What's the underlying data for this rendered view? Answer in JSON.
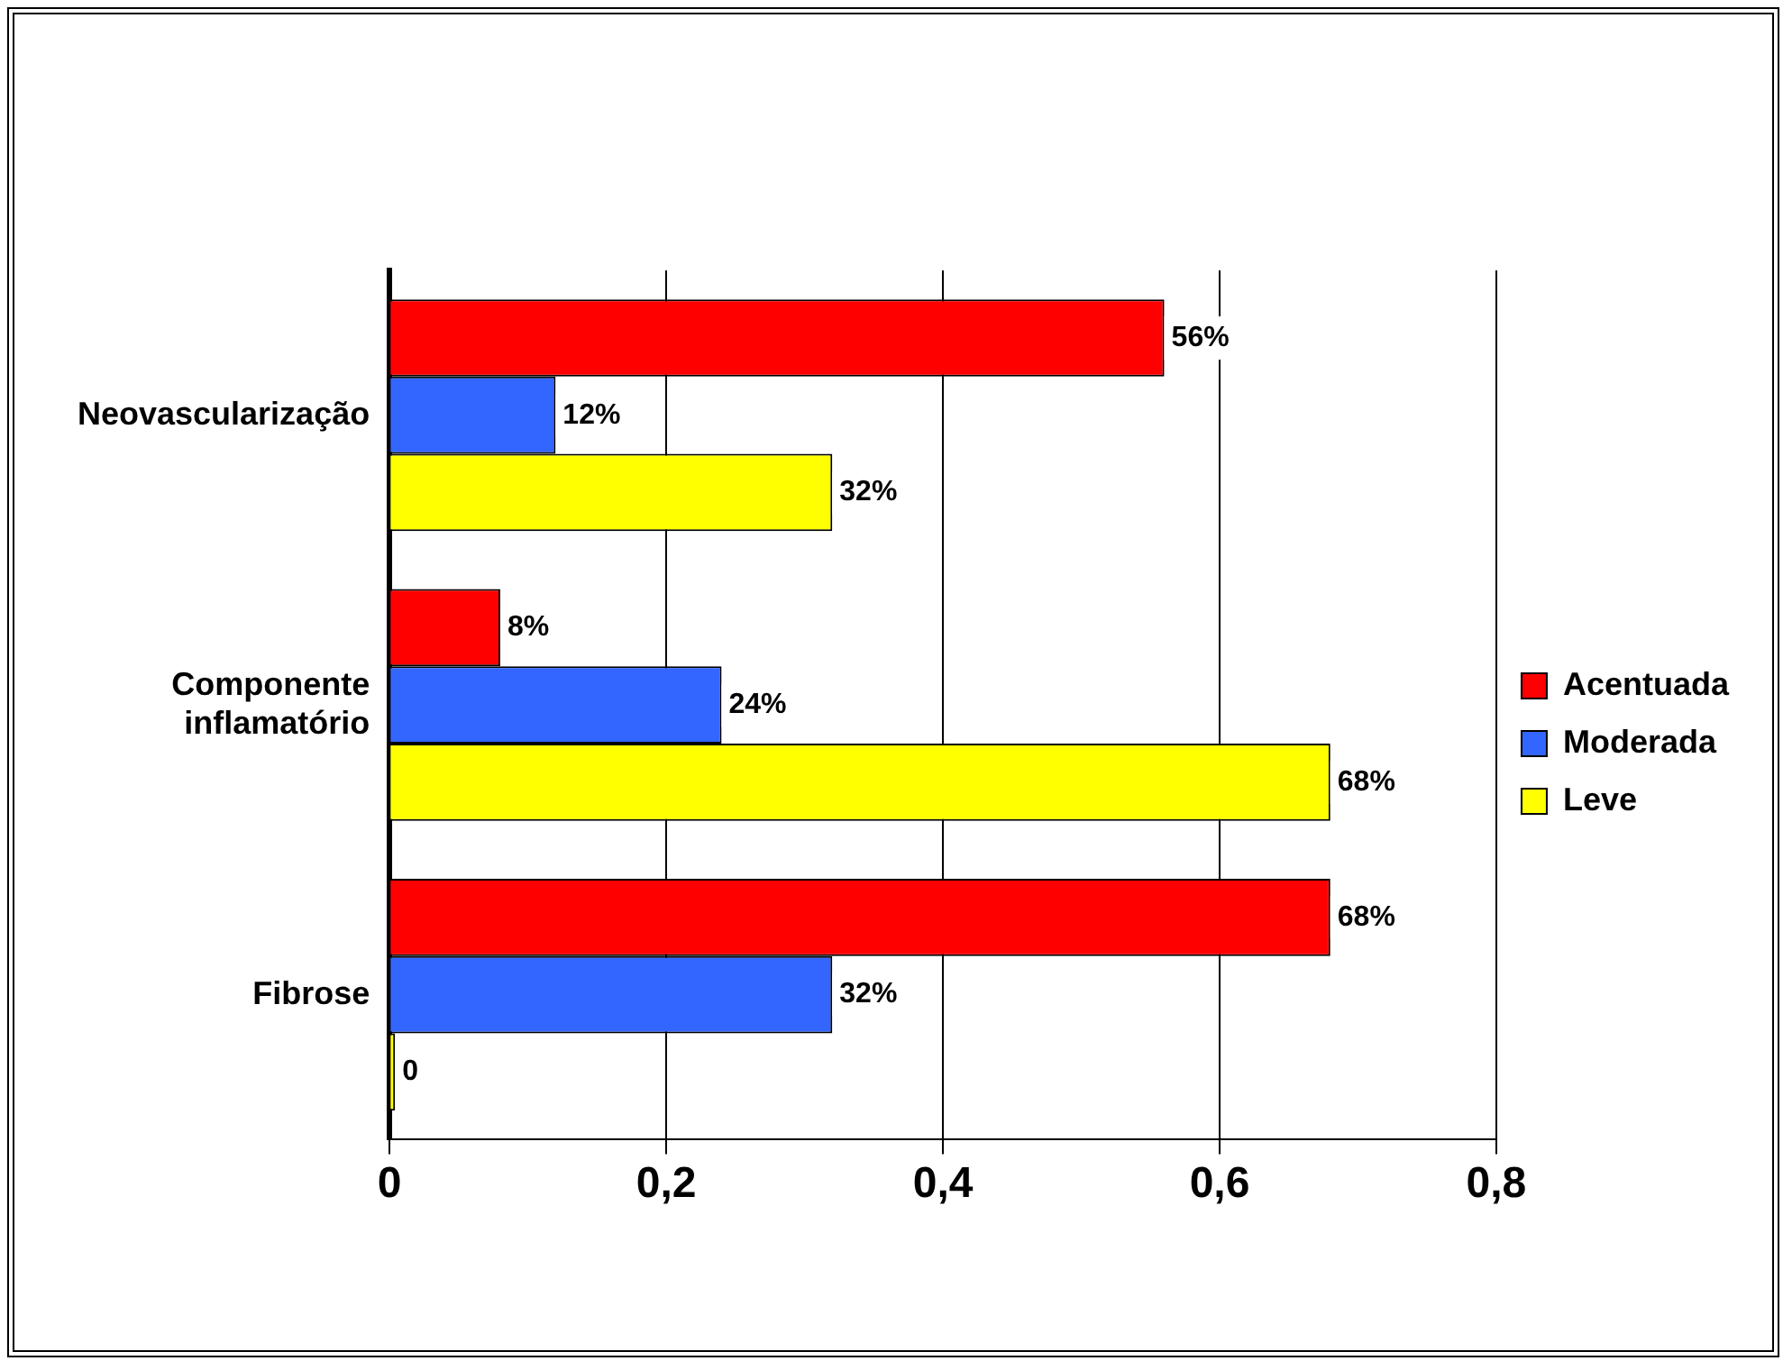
{
  "chart_data": {
    "type": "bar",
    "orientation": "horizontal",
    "categories": [
      "Neovascularização",
      "Componente inflamatório",
      "Fibrose"
    ],
    "series": [
      {
        "name": "Acentuada",
        "color": "#ff0000",
        "values": [
          0.56,
          0.08,
          0.68
        ],
        "value_labels": [
          "56%",
          "8%",
          "68%"
        ]
      },
      {
        "name": "Moderada",
        "color": "#3366ff",
        "values": [
          0.12,
          0.24,
          0.32
        ],
        "value_labels": [
          "12%",
          "24%",
          "32%"
        ]
      },
      {
        "name": "Leve",
        "color": "#ffff00",
        "values": [
          0.32,
          0.68,
          0
        ],
        "value_labels": [
          "32%",
          "68%",
          "0"
        ]
      }
    ],
    "xlim": [
      0,
      0.8
    ],
    "xticks": [
      0,
      {
        "value": 0.2,
        "label": "0,2"
      },
      {
        "value": 0.4,
        "label": "0,4"
      },
      {
        "value": 0.6,
        "label": "0,6"
      },
      {
        "value": 0.8,
        "label": "0,8"
      }
    ],
    "grid": "x",
    "legend": "right"
  }
}
